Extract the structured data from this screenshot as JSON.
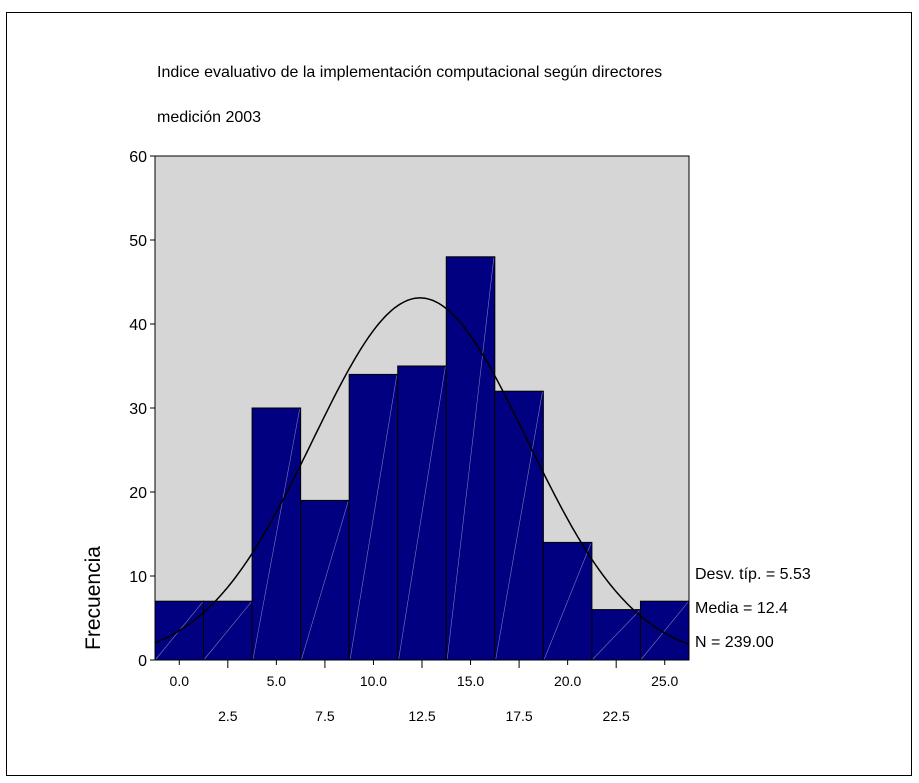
{
  "chart_data": {
    "type": "bar",
    "title": "Indice evaluativo de la implementación computacional según directores",
    "subtitle": "medición 2003",
    "xlabel": "",
    "ylabel": "Frecuencia",
    "ylim": [
      0,
      60
    ],
    "yticks": [
      "0",
      "10",
      "20",
      "30",
      "40",
      "50",
      "60"
    ],
    "bin_width": 2.5,
    "categories": [
      "0.0",
      "2.5",
      "5.0",
      "7.5",
      "10.0",
      "12.5",
      "15.0",
      "17.5",
      "20.0",
      "22.5",
      "25.0"
    ],
    "values": [
      7,
      7,
      30,
      19,
      34,
      35,
      48,
      32,
      14,
      6,
      7
    ],
    "grid": false,
    "plot_background": "#d6d6d6",
    "bar_color": "#000080",
    "normal_curve": {
      "mean": 12.4,
      "sd": 5.53,
      "n": 239
    },
    "stats": {
      "sd": "Desv. típ. = 5.53",
      "mean": "Media = 12.4",
      "n": "N = 239.00"
    }
  }
}
